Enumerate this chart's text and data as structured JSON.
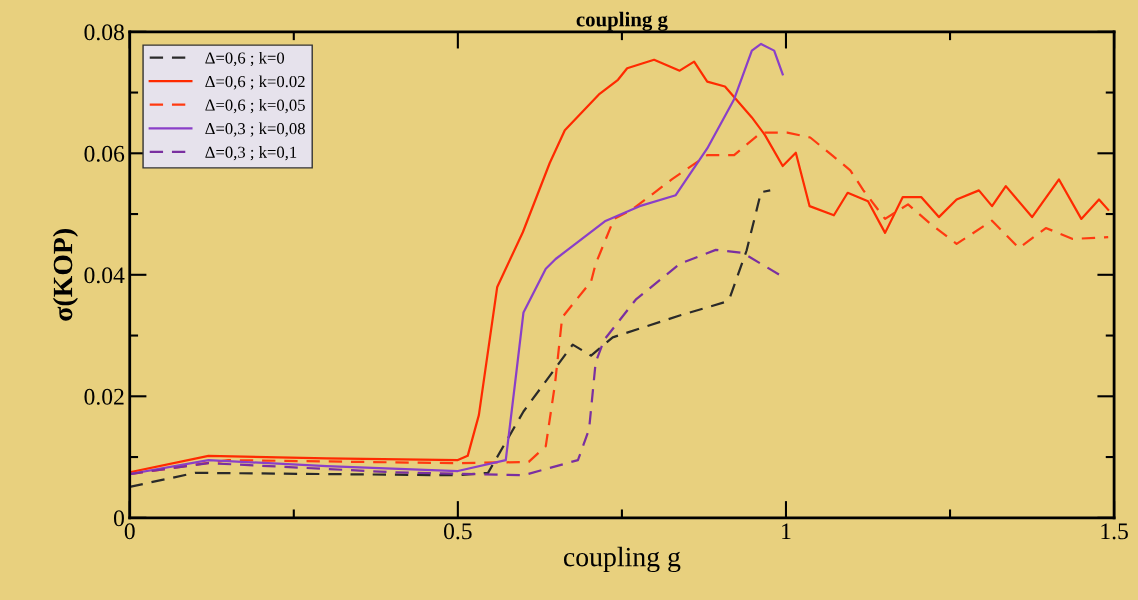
{
  "chart_data": {
    "type": "line",
    "title": "coupling g",
    "xlabel": "coupling g",
    "ylabel": "σ(KOP)",
    "xlim": [
      0,
      1.5
    ],
    "xticks": [
      0,
      0.5,
      1,
      1.5
    ],
    "ylim": [
      0,
      0.08
    ],
    "yticks": [
      0,
      0.02,
      0.04,
      0.06,
      0.08
    ],
    "grid": false,
    "legend": "top left",
    "series": [
      {
        "name": "Δ=0,6 ; k=0",
        "color": "#2a2a2a",
        "line_style": "dashed",
        "x": [
          0,
          0.1,
          0.3,
          0.5,
          0.546,
          0.6,
          0.675,
          0.703,
          0.736,
          0.838,
          0.907,
          0.915,
          0.94,
          0.962,
          0.976
        ],
        "values": [
          0.0051,
          0.0074,
          0.0072,
          0.007,
          0.0074,
          0.0175,
          0.0285,
          0.0267,
          0.0297,
          0.0333,
          0.0355,
          0.0364,
          0.044,
          0.0536,
          0.0539
        ]
      },
      {
        "name": "Δ=0,6 ; k=0.02",
        "color": "#ff2a00",
        "line_style": "solid",
        "x": [
          0,
          0.12,
          0.3,
          0.5,
          0.515,
          0.532,
          0.56,
          0.599,
          0.64,
          0.663,
          0.716,
          0.744,
          0.758,
          0.799,
          0.838,
          0.86,
          0.88,
          0.907,
          0.948,
          0.968,
          0.995,
          1.015,
          1.036,
          1.073,
          1.094,
          1.125,
          1.151,
          1.178,
          1.206,
          1.233,
          1.26,
          1.294,
          1.314,
          1.335,
          1.375,
          1.416,
          1.45,
          1.477,
          1.491
        ],
        "values": [
          0.0075,
          0.0102,
          0.0098,
          0.0095,
          0.0102,
          0.0169,
          0.038,
          0.047,
          0.0584,
          0.0638,
          0.0698,
          0.0721,
          0.074,
          0.0754,
          0.0736,
          0.0751,
          0.0718,
          0.071,
          0.0659,
          0.063,
          0.0579,
          0.0601,
          0.0513,
          0.0498,
          0.0535,
          0.0521,
          0.0469,
          0.0528,
          0.0528,
          0.0495,
          0.0524,
          0.0539,
          0.0513,
          0.0546,
          0.0495,
          0.0557,
          0.0492,
          0.0524,
          0.0507
        ]
      },
      {
        "name": "Δ=0,6 ; k=0,05",
        "color": "#ff3a10",
        "line_style": "dashed",
        "x": [
          0,
          0.15,
          0.35,
          0.5,
          0.608,
          0.634,
          0.648,
          0.659,
          0.703,
          0.71,
          0.738,
          0.765,
          0.826,
          0.88,
          0.921,
          0.962,
          1.002,
          1.037,
          1.07,
          1.098,
          1.118,
          1.151,
          1.186,
          1.22,
          1.26,
          1.314,
          1.355,
          1.396,
          1.437,
          1.491
        ],
        "values": [
          0.0072,
          0.0095,
          0.0092,
          0.009,
          0.0092,
          0.0118,
          0.022,
          0.033,
          0.0389,
          0.0418,
          0.0492,
          0.0507,
          0.0557,
          0.0597,
          0.0597,
          0.0634,
          0.0634,
          0.0626,
          0.0597,
          0.0572,
          0.0539,
          0.0492,
          0.0516,
          0.0484,
          0.0451,
          0.0489,
          0.0444,
          0.0477,
          0.0459,
          0.0462
        ]
      },
      {
        "name": "Δ=0,3 ; k=0,08",
        "color": "#8a3fc8",
        "line_style": "solid",
        "x": [
          0,
          0.12,
          0.3,
          0.5,
          0.573,
          0.587,
          0.6,
          0.634,
          0.649,
          0.724,
          0.777,
          0.832,
          0.88,
          0.921,
          0.948,
          0.962,
          0.982,
          0.995
        ],
        "values": [
          0.0072,
          0.0095,
          0.0085,
          0.0077,
          0.0095,
          0.022,
          0.0338,
          0.041,
          0.0426,
          0.0488,
          0.0513,
          0.0531,
          0.0608,
          0.0689,
          0.0769,
          0.078,
          0.0769,
          0.073
        ]
      },
      {
        "name": "Δ=0,3 ; k=0,1",
        "color": "#7a2fa0",
        "line_style": "dashed",
        "x": [
          0,
          0.12,
          0.4,
          0.6,
          0.683,
          0.7,
          0.71,
          0.723,
          0.771,
          0.838,
          0.893,
          0.934,
          0.962,
          0.995
        ],
        "values": [
          0.0072,
          0.009,
          0.0075,
          0.007,
          0.0095,
          0.0146,
          0.0256,
          0.0293,
          0.0359,
          0.0418,
          0.0441,
          0.0436,
          0.0418,
          0.0397
        ]
      }
    ]
  }
}
